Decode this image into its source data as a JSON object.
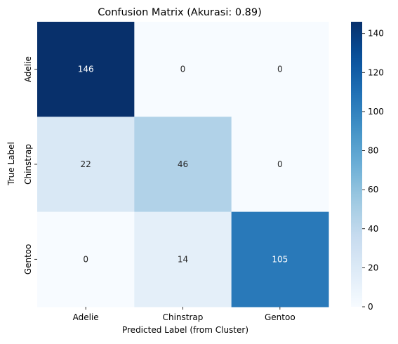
{
  "chart_data": {
    "type": "heatmap",
    "title": "Confusion Matrix (Akurasi: 0.89)",
    "xlabel": "Predicted Label (from Cluster)",
    "ylabel": "True Label",
    "x_categories": [
      "Adelie",
      "Chinstrap",
      "Gentoo"
    ],
    "y_categories": [
      "Adelie",
      "Chinstrap",
      "Gentoo"
    ],
    "values": [
      [
        146,
        0,
        0
      ],
      [
        22,
        46,
        0
      ],
      [
        0,
        14,
        105
      ]
    ],
    "colormap": "Blues",
    "colorbar": {
      "vmin": 0,
      "vmax": 146,
      "ticks": [
        0,
        20,
        40,
        60,
        80,
        100,
        120,
        140
      ]
    },
    "annotations": true,
    "grid": false,
    "legend": "colorbar-right"
  }
}
